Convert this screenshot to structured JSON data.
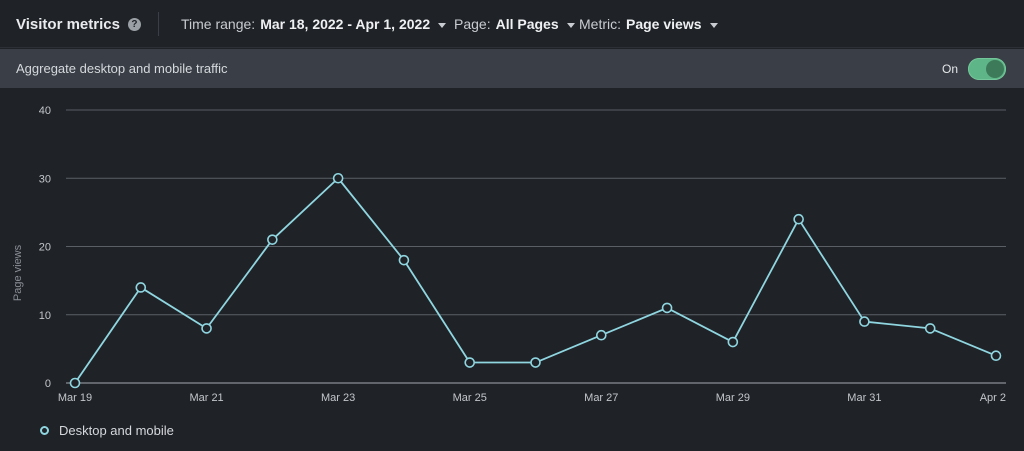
{
  "header": {
    "title": "Visitor metrics",
    "help_icon": "help-icon",
    "time_range": {
      "label": "Time range:",
      "value": "Mar 18, 2022 - Apr 1, 2022"
    },
    "page": {
      "label": "Page:",
      "value": "All Pages"
    },
    "metric": {
      "label": "Metric:",
      "value": "Page views"
    }
  },
  "aggregate": {
    "label": "Aggregate desktop and mobile traffic",
    "toggle_state": "On",
    "toggle_on": true
  },
  "colors": {
    "line": "#8fd6e0",
    "grid": "#5a5f66",
    "toggle": "#5eb587"
  },
  "chart_data": {
    "type": "line",
    "ylabel": "Page views",
    "xlabel": "",
    "ylim": [
      0,
      40
    ],
    "yticks": [
      0,
      10,
      20,
      30,
      40
    ],
    "grid": true,
    "x": [
      "Mar 19",
      "Mar 20",
      "Mar 21",
      "Mar 22",
      "Mar 23",
      "Mar 24",
      "Mar 25",
      "Mar 26",
      "Mar 27",
      "Mar 28",
      "Mar 29",
      "Mar 30",
      "Mar 31",
      "Apr 1",
      "Apr 2"
    ],
    "xtick_labels": [
      "Mar 19",
      "Mar 21",
      "Mar 23",
      "Mar 25",
      "Mar 27",
      "Mar 29",
      "Mar 31",
      "Apr 2"
    ],
    "series": [
      {
        "name": "Desktop and mobile",
        "values": [
          0,
          14,
          8,
          21,
          30,
          18,
          3,
          3,
          7,
          11,
          6,
          24,
          9,
          8,
          4
        ]
      }
    ],
    "legend_position": "bottom-left"
  }
}
